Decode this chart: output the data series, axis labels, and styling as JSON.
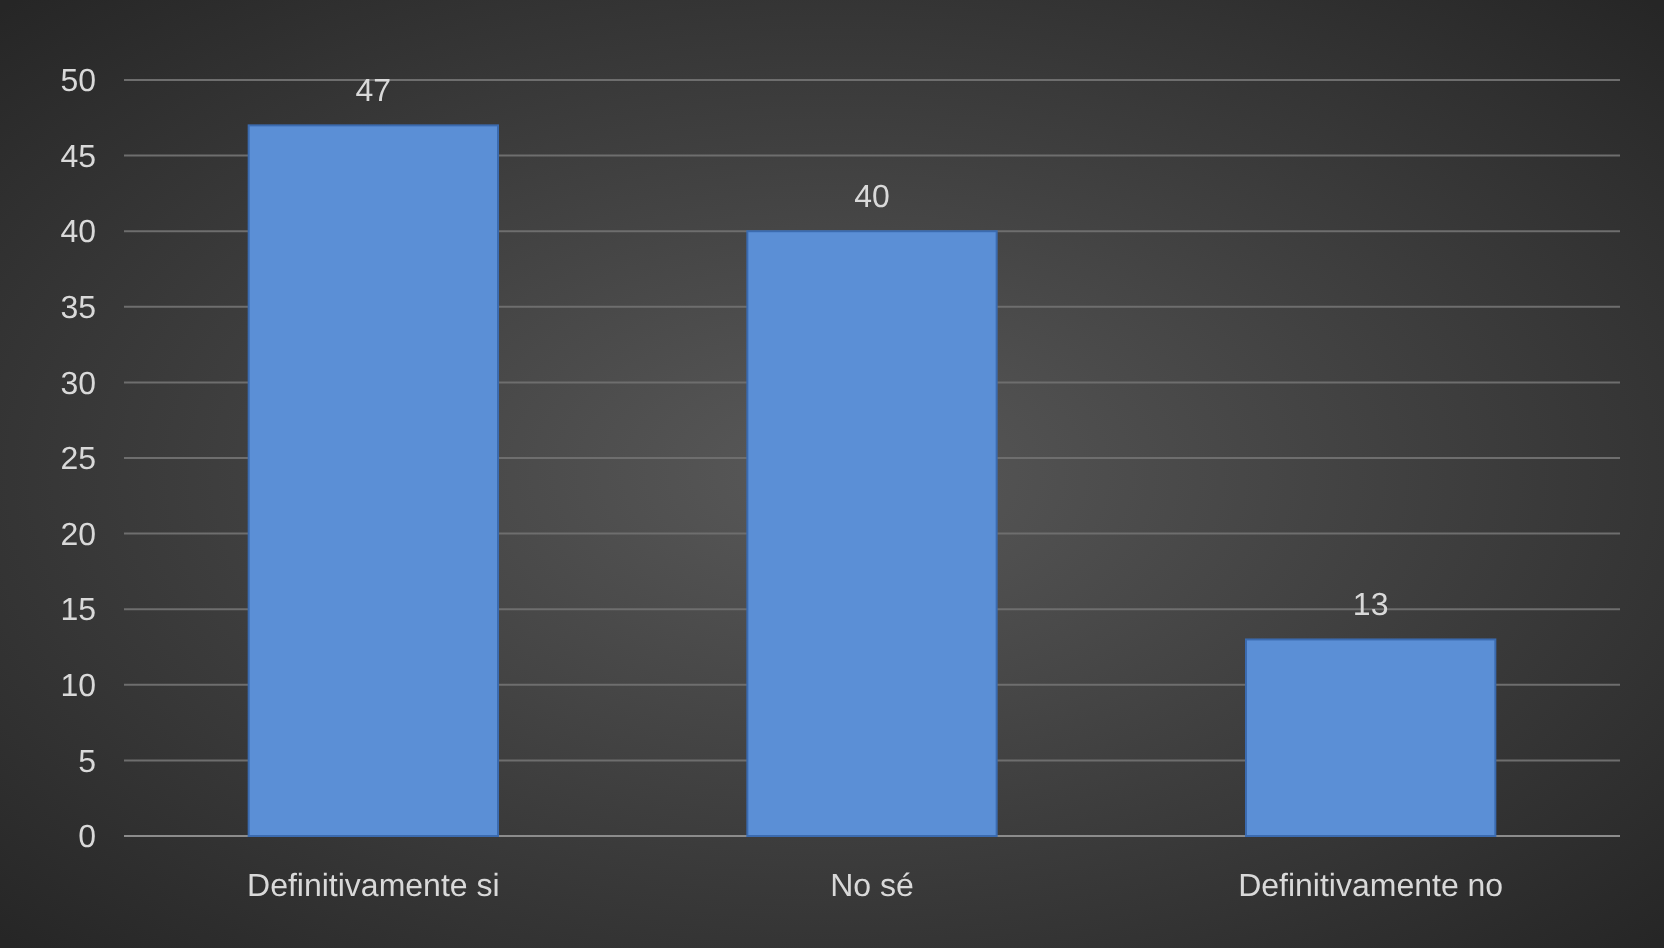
{
  "chart_data": {
    "type": "bar",
    "categories": [
      "Definitivamente si",
      "No sé",
      "Definitivamente no"
    ],
    "values": [
      47,
      40,
      13
    ],
    "color": "#5b8fd6",
    "ylim": [
      0,
      50
    ],
    "yticks": [
      0,
      5,
      10,
      15,
      20,
      25,
      30,
      35,
      40,
      45,
      50
    ],
    "grid": "y",
    "data_labels": true
  }
}
